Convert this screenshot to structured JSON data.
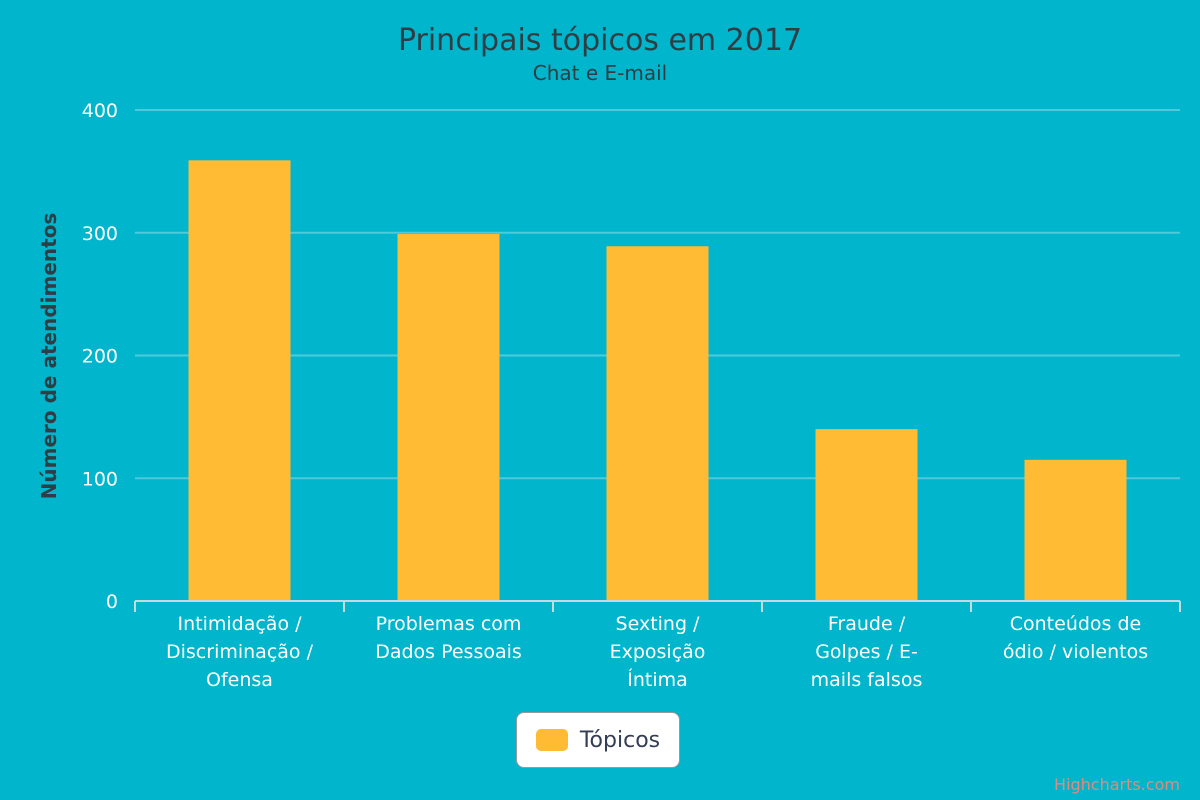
{
  "chart_data": {
    "type": "bar",
    "title": "Principais tópicos em 2017",
    "subtitle": "Chat e E-mail",
    "categories": [
      [
        "Intimidação /",
        "Discriminação /",
        "Ofensa"
      ],
      [
        "Problemas com",
        "Dados Pessoais"
      ],
      [
        "Sexting /",
        "Exposição",
        "Íntima"
      ],
      [
        "Fraude /",
        "Golpes / E-",
        "mails falsos"
      ],
      [
        "Conteúdos de",
        "ódio / violentos"
      ]
    ],
    "series": [
      {
        "name": "Tópicos",
        "values": [
          359,
          299,
          289,
          140,
          115
        ],
        "color": "#ffbb33"
      }
    ],
    "xlabel": "",
    "ylabel": "Número de atendimentos",
    "ylim": [
      0,
      400
    ],
    "yticks": [
      0,
      100,
      200,
      300,
      400
    ],
    "grid": true,
    "legend_position": "bottom-center",
    "background": "#00b5cc",
    "credit": "Highcharts.com"
  }
}
